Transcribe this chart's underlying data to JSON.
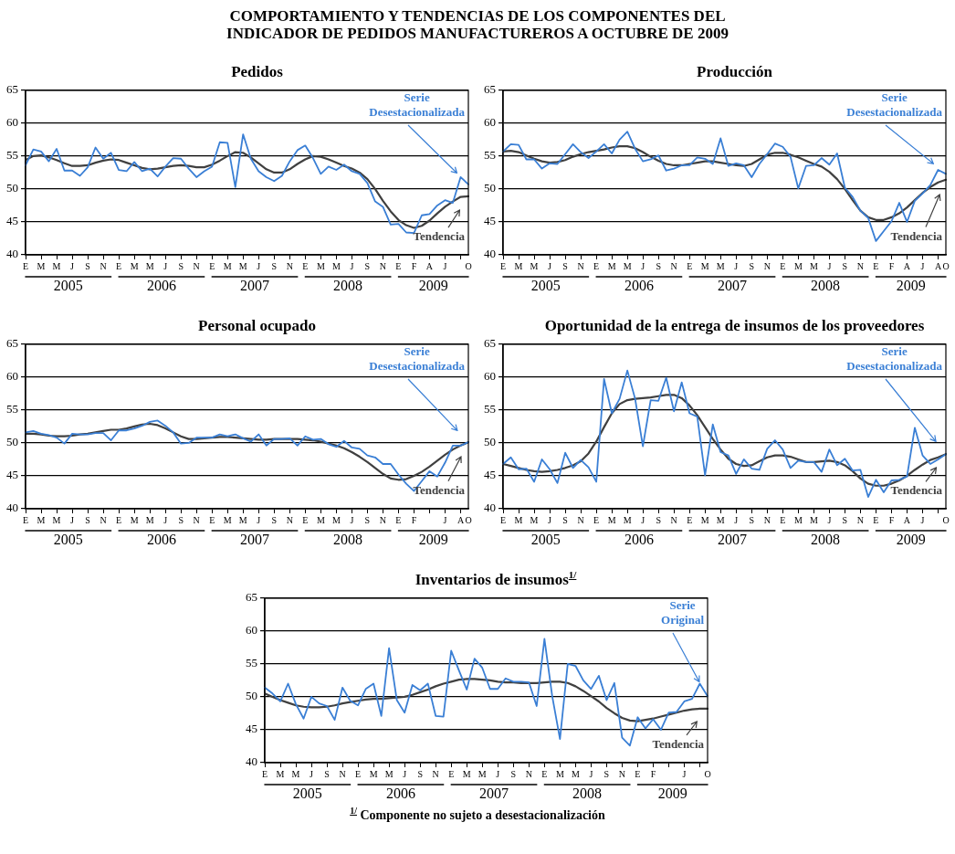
{
  "chart_data": [
    {
      "type": "line",
      "title": "Pedidos",
      "marker": "none",
      "grid": "y",
      "ylim": [
        40,
        65
      ],
      "yticks": [
        40,
        45,
        50,
        55,
        60,
        65
      ],
      "categories": [
        "E",
        null,
        "M",
        null,
        "M",
        null,
        "J",
        null,
        "S",
        null,
        "N",
        null,
        "E",
        null,
        "M",
        null,
        "M",
        null,
        "J",
        null,
        "S",
        null,
        "N",
        null,
        "E",
        null,
        "M",
        null,
        "M",
        null,
        "J",
        null,
        "S",
        null,
        "N",
        null,
        "E",
        null,
        "M",
        null,
        "M",
        null,
        "J",
        null,
        "S",
        null,
        "N",
        null,
        "E",
        null,
        "F",
        null,
        "A",
        null,
        "J",
        null,
        null,
        "O"
      ],
      "series": [
        {
          "name": "Serie Desestacionalizada",
          "color": "#3a7fd5",
          "values": [
            53.6,
            56.0,
            55.7,
            54.2,
            56.1,
            52.8,
            52.8,
            52.0,
            53.3,
            56.3,
            54.6,
            55.5,
            52.9,
            52.7,
            54.1,
            52.7,
            53.1,
            51.9,
            53.4,
            54.7,
            54.6,
            53.1,
            51.8,
            52.7,
            53.4,
            57.1,
            57.0,
            50.3,
            58.3,
            54.6,
            52.7,
            51.8,
            51.2,
            52.0,
            54.2,
            55.9,
            56.6,
            54.7,
            52.3,
            53.4,
            52.9,
            53.7,
            52.7,
            52.3,
            50.9,
            48.1,
            47.3,
            44.6,
            44.7,
            43.4,
            43.3,
            46.0,
            46.2,
            47.5,
            48.3,
            47.9,
            51.8,
            50.7
          ]
        },
        {
          "name": "Tendencia",
          "color": "#404040",
          "values": [
            54.4,
            55.0,
            55.1,
            54.8,
            54.4,
            53.9,
            53.5,
            53.5,
            53.6,
            54.0,
            54.3,
            54.5,
            54.4,
            54.0,
            53.6,
            53.2,
            53.0,
            53.1,
            53.3,
            53.5,
            53.6,
            53.5,
            53.3,
            53.3,
            53.7,
            54.3,
            55.0,
            55.6,
            55.5,
            54.8,
            53.9,
            53.0,
            52.5,
            52.5,
            53.0,
            53.8,
            54.5,
            55.0,
            54.9,
            54.5,
            54.0,
            53.5,
            53.1,
            52.5,
            51.5,
            50.0,
            48.2,
            46.6,
            45.3,
            44.5,
            44.1,
            44.4,
            45.2,
            46.3,
            47.3,
            48.1,
            48.8,
            48.9
          ]
        }
      ],
      "annotations": [
        "COMPORTAMIENTO Y TENDENCIAS DE LOS COMPONENTES DEL INDICADOR DE PEDIDOS MANUFACTUREROS A OCTUBRE DE 2009",
        "2005",
        "2006",
        "2007",
        "2008",
        "2009"
      ]
    },
    {
      "type": "line",
      "title": "Producción",
      "marker": "none",
      "grid": "y",
      "ylim": [
        40,
        65
      ],
      "yticks": [
        40,
        45,
        50,
        55,
        60,
        65
      ],
      "categories": [
        "E",
        null,
        "M",
        null,
        "M",
        null,
        "J",
        null,
        "S",
        null,
        "N",
        null,
        "E",
        null,
        "M",
        null,
        "M",
        null,
        "J",
        null,
        "S",
        null,
        "N",
        null,
        "E",
        null,
        "M",
        null,
        "M",
        null,
        "J",
        null,
        "S",
        null,
        "N",
        null,
        "E",
        null,
        "M",
        null,
        "M",
        null,
        "J",
        null,
        "S",
        null,
        "N",
        null,
        "E",
        null,
        "F",
        null,
        "A",
        null,
        "J",
        null,
        "A",
        "O"
      ],
      "series": [
        {
          "name": "Serie Desestacionalizada",
          "color": "#3a7fd5",
          "values": [
            55.7,
            56.8,
            56.7,
            54.5,
            54.5,
            53.1,
            53.9,
            53.8,
            55.3,
            56.8,
            55.6,
            54.7,
            55.7,
            56.8,
            55.4,
            57.5,
            58.7,
            56.1,
            54.2,
            54.5,
            55.1,
            52.8,
            53.1,
            53.6,
            53.6,
            54.8,
            54.6,
            53.8,
            57.7,
            53.5,
            53.9,
            53.6,
            51.8,
            53.8,
            55.3,
            56.9,
            56.4,
            54.9,
            50.1,
            53.5,
            53.6,
            54.7,
            53.7,
            55.4,
            50.2,
            48.8,
            46.7,
            45.6,
            42.1,
            43.6,
            45.1,
            47.9,
            45.0,
            48.2,
            49.3,
            50.6,
            52.9,
            52.3
          ]
        },
        {
          "name": "Tendencia",
          "color": "#404040",
          "values": [
            55.7,
            55.8,
            55.6,
            55.1,
            54.6,
            54.2,
            54.0,
            54.1,
            54.4,
            54.9,
            55.3,
            55.6,
            55.8,
            56.0,
            56.3,
            56.5,
            56.5,
            56.2,
            55.6,
            54.9,
            54.3,
            53.8,
            53.6,
            53.6,
            53.8,
            54.0,
            54.2,
            54.2,
            54.0,
            53.8,
            53.6,
            53.5,
            53.8,
            54.5,
            55.2,
            55.5,
            55.5,
            55.2,
            54.8,
            54.3,
            53.8,
            53.4,
            52.6,
            51.5,
            50.0,
            48.3,
            46.7,
            45.7,
            45.3,
            45.3,
            45.7,
            46.3,
            47.2,
            48.3,
            49.4,
            50.3,
            51.0,
            51.4
          ]
        }
      ],
      "annotations": [
        "2005",
        "2006",
        "2007",
        "2008",
        "2009"
      ]
    },
    {
      "type": "line",
      "title": "Personal ocupado",
      "marker": "none",
      "grid": "y",
      "ylim": [
        40,
        65
      ],
      "yticks": [
        40,
        45,
        50,
        55,
        60,
        65
      ],
      "categories": [
        "E",
        null,
        "M",
        null,
        "M",
        null,
        "J",
        null,
        "S",
        null,
        "N",
        null,
        "E",
        null,
        "M",
        null,
        "M",
        null,
        "J",
        null,
        "S",
        null,
        "N",
        null,
        "E",
        null,
        "M",
        null,
        "M",
        null,
        "J",
        null,
        "S",
        null,
        "N",
        null,
        "E",
        null,
        "M",
        null,
        "M",
        null,
        "J",
        null,
        "S",
        null,
        "N",
        null,
        "E",
        null,
        "F",
        null,
        null,
        null,
        "J",
        null,
        "A",
        "O"
      ],
      "series": [
        {
          "name": "Serie Desestacionalizada",
          "color": "#3a7fd5",
          "values": [
            51.6,
            51.8,
            51.4,
            51.2,
            50.8,
            49.9,
            51.4,
            51.3,
            51.3,
            51.5,
            51.5,
            50.4,
            51.9,
            51.9,
            52.2,
            52.6,
            53.2,
            53.4,
            52.6,
            51.6,
            49.9,
            50.0,
            50.8,
            50.8,
            50.8,
            51.3,
            51.0,
            51.3,
            50.7,
            50.2,
            51.3,
            49.6,
            50.6,
            50.6,
            50.7,
            49.6,
            51.0,
            50.5,
            50.6,
            49.8,
            49.4,
            50.3,
            49.3,
            49.1,
            48.1,
            47.8,
            46.8,
            46.8,
            45.2,
            43.8,
            42.7,
            44.2,
            45.7,
            44.9,
            47.0,
            49.6,
            49.6,
            50.1
          ]
        },
        {
          "name": "Tendencia",
          "color": "#404040",
          "values": [
            51.4,
            51.4,
            51.3,
            51.1,
            51.0,
            51.0,
            51.1,
            51.3,
            51.4,
            51.6,
            51.8,
            52.0,
            52.0,
            52.2,
            52.5,
            52.8,
            52.9,
            52.7,
            52.2,
            51.6,
            51.0,
            50.6,
            50.6,
            50.7,
            50.8,
            50.9,
            50.9,
            50.8,
            50.7,
            50.6,
            50.5,
            50.5,
            50.6,
            50.6,
            50.6,
            50.6,
            50.5,
            50.4,
            50.2,
            49.9,
            49.6,
            49.2,
            48.6,
            47.9,
            47.1,
            46.2,
            45.3,
            44.6,
            44.4,
            44.5,
            45.0,
            45.6,
            46.4,
            47.3,
            48.2,
            49.0,
            49.6,
            50.1
          ]
        }
      ],
      "annotations": [
        "2005",
        "2006",
        "2007",
        "2008",
        "2009"
      ]
    },
    {
      "type": "line",
      "title": "Oportunidad de la entrega de insumos de los proveedores",
      "marker": "none",
      "grid": "y",
      "ylim": [
        40,
        65
      ],
      "yticks": [
        40,
        45,
        50,
        55,
        60,
        65
      ],
      "categories": [
        "E",
        null,
        "M",
        null,
        "M",
        null,
        "J",
        null,
        "S",
        null,
        "N",
        null,
        "E",
        null,
        "M",
        null,
        "M",
        null,
        "J",
        null,
        "S",
        null,
        "N",
        null,
        "E",
        null,
        "M",
        null,
        "M",
        null,
        "J",
        null,
        "S",
        null,
        "N",
        null,
        "E",
        null,
        "M",
        null,
        "M",
        null,
        "J",
        null,
        "S",
        null,
        "N",
        null,
        "E",
        null,
        "F",
        null,
        "A",
        null,
        "J",
        null,
        null,
        "O"
      ],
      "series": [
        {
          "name": "Serie Desestacionalizada",
          "color": "#3a7fd5",
          "values": [
            46.8,
            47.8,
            46.0,
            46.1,
            44.1,
            47.5,
            46.0,
            43.9,
            48.5,
            46.2,
            47.4,
            46.3,
            44.1,
            59.7,
            54.5,
            56.7,
            61.0,
            56.7,
            49.5,
            56.5,
            56.4,
            59.9,
            54.8,
            59.2,
            54.5,
            54.0,
            45.1,
            52.8,
            48.6,
            48.1,
            45.3,
            47.5,
            46.1,
            45.9,
            49.1,
            50.4,
            49.0,
            46.2,
            47.3,
            47.1,
            47.1,
            45.6,
            49.0,
            46.6,
            47.6,
            45.8,
            45.9,
            41.8,
            44.4,
            42.5,
            44.3,
            44.4,
            44.9,
            52.3,
            48.1,
            46.8,
            47.5,
            48.3
          ]
        },
        {
          "name": "Tendencia",
          "color": "#404040",
          "values": [
            46.8,
            46.5,
            46.2,
            45.9,
            45.7,
            45.6,
            45.7,
            45.9,
            46.2,
            46.6,
            47.2,
            48.4,
            50.2,
            52.4,
            54.5,
            55.9,
            56.5,
            56.7,
            56.8,
            56.9,
            57.1,
            57.3,
            57.3,
            56.8,
            55.7,
            54.2,
            52.4,
            50.6,
            49.0,
            47.6,
            46.8,
            46.5,
            46.6,
            47.2,
            47.8,
            48.1,
            48.1,
            47.9,
            47.5,
            47.1,
            47.1,
            47.2,
            47.3,
            47.1,
            46.6,
            45.7,
            44.6,
            43.8,
            43.5,
            43.5,
            43.8,
            44.3,
            45.0,
            45.9,
            46.7,
            47.4,
            47.8,
            48.3
          ]
        }
      ],
      "annotations": [
        "2005",
        "2006",
        "2007",
        "2008",
        "2009"
      ]
    },
    {
      "type": "line",
      "title": "Inventarios de insumos$^{1/}$",
      "marker": "none",
      "grid": "y",
      "ylim": [
        40,
        65
      ],
      "yticks": [
        40,
        45,
        50,
        55,
        60,
        65
      ],
      "categories": [
        "E",
        null,
        "M",
        null,
        "M",
        null,
        "J",
        null,
        "S",
        null,
        "N",
        null,
        "E",
        null,
        "M",
        null,
        "M",
        null,
        "J",
        null,
        "S",
        null,
        "N",
        null,
        "E",
        null,
        "M",
        null,
        "M",
        null,
        "J",
        null,
        "S",
        null,
        "N",
        null,
        "E",
        null,
        "M",
        null,
        "M",
        null,
        "J",
        null,
        "S",
        null,
        "N",
        null,
        "E",
        null,
        "F",
        null,
        null,
        null,
        "J",
        null,
        null,
        "O"
      ],
      "series": [
        {
          "name": "Serie Original",
          "color": "#3a7fd5",
          "values": [
            51.4,
            50.5,
            49.3,
            52.0,
            48.9,
            46.7,
            50.0,
            49.0,
            48.6,
            46.5,
            51.4,
            49.4,
            48.7,
            51.2,
            52.0,
            47.1,
            57.4,
            49.5,
            47.6,
            51.8,
            51.0,
            52.0,
            47.1,
            47.0,
            57.0,
            54.0,
            51.1,
            55.8,
            54.4,
            51.2,
            51.2,
            52.8,
            52.3,
            52.3,
            52.2,
            48.6,
            58.8,
            50.1,
            43.6,
            55.0,
            54.7,
            52.5,
            51.2,
            53.2,
            49.5,
            52.1,
            43.8,
            42.6,
            46.9,
            45.2,
            46.6,
            45.0,
            47.6,
            47.7,
            49.3,
            49.7,
            52.0,
            50.1
          ]
        },
        {
          "name": "Tendencia",
          "color": "#404040",
          "values": [
            50.5,
            50.0,
            49.5,
            49.1,
            48.7,
            48.5,
            48.4,
            48.4,
            48.5,
            48.7,
            49.0,
            49.2,
            49.4,
            49.6,
            49.7,
            49.7,
            49.8,
            49.9,
            50.0,
            50.3,
            50.7,
            51.1,
            51.6,
            52.0,
            52.3,
            52.6,
            52.7,
            52.7,
            52.6,
            52.5,
            52.3,
            52.2,
            52.2,
            52.1,
            52.1,
            52.1,
            52.2,
            52.3,
            52.3,
            52.1,
            51.6,
            50.9,
            50.1,
            49.3,
            48.3,
            47.5,
            46.8,
            46.4,
            46.3,
            46.5,
            46.7,
            47.0,
            47.3,
            47.6,
            47.9,
            48.1,
            48.2,
            48.2
          ]
        }
      ],
      "annotations": [
        "2005",
        "2006",
        "2007",
        "2008",
        "2009",
        "$^{1/}$ Componente  no sujeto a desestacionalización"
      ]
    }
  ]
}
